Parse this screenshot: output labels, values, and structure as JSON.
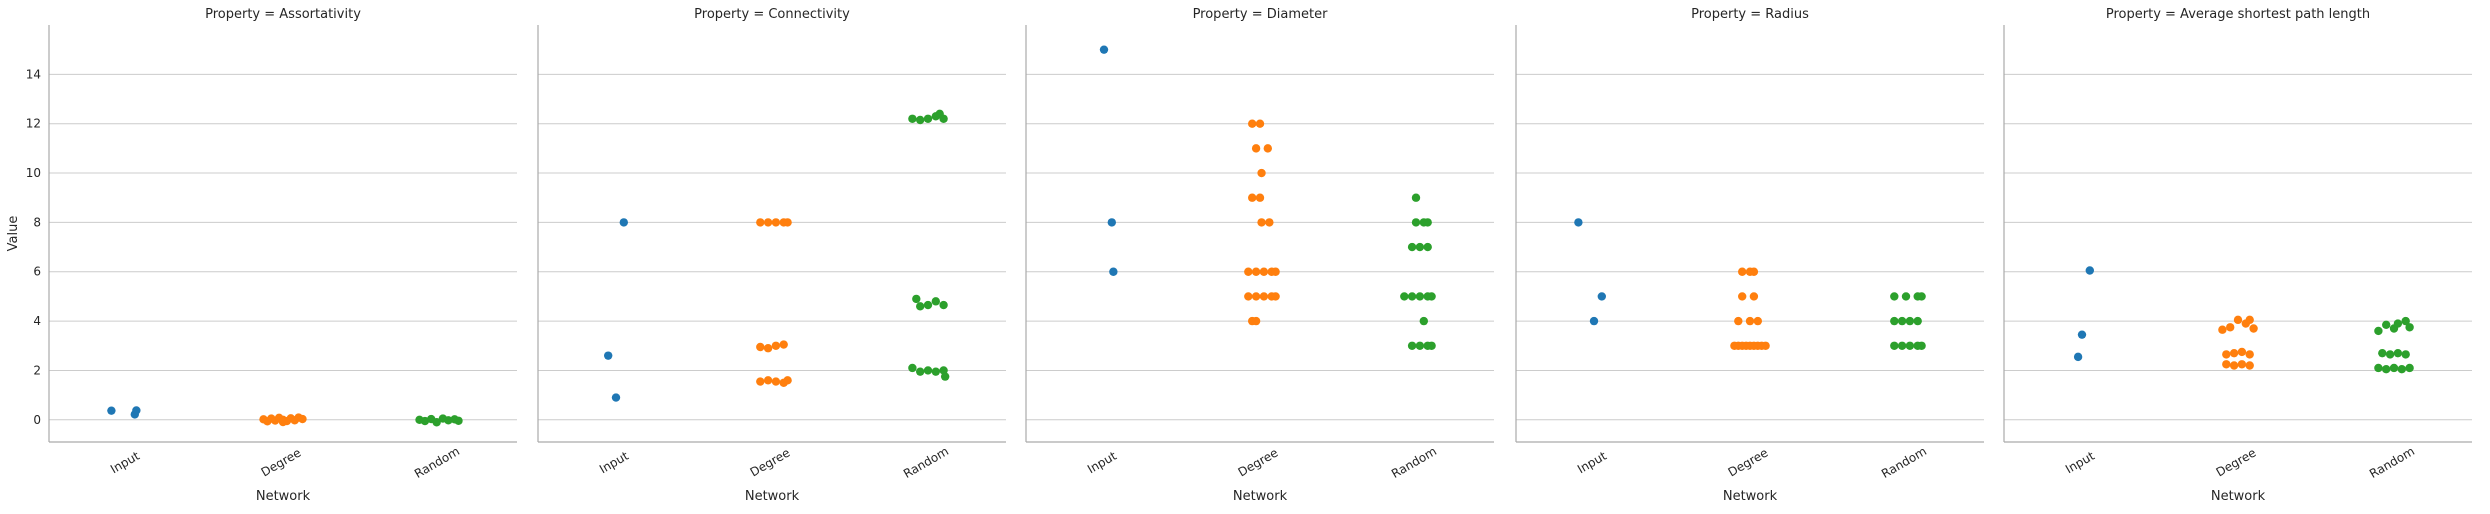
{
  "chart_data": {
    "type": "scatter",
    "ylabel": "Value",
    "xlabel": "Network",
    "ylim": [
      -0.9,
      16.0
    ],
    "yticks": [
      0,
      2,
      4,
      6,
      8,
      10,
      12,
      14
    ],
    "categories": [
      "Input",
      "Degree",
      "Random"
    ],
    "series_colors": {
      "Input": "#1f77b4",
      "Degree": "#ff7f0e",
      "Random": "#2ca02c"
    },
    "grid": true,
    "panels": [
      {
        "title": "Property = Assortativity",
        "points": {
          "Input": [
            [
              -0.2,
              0.37
            ],
            [
              0.1,
              0.22
            ],
            [
              0.12,
              0.38
            ]
          ],
          "Degree": [
            [
              -0.25,
              0.02
            ],
            [
              -0.2,
              -0.06
            ],
            [
              -0.15,
              0.05
            ],
            [
              -0.1,
              -0.03
            ],
            [
              -0.05,
              0.08
            ],
            [
              0.0,
              0.0
            ],
            [
              0.05,
              -0.05
            ],
            [
              0.1,
              0.06
            ],
            [
              0.15,
              -0.02
            ],
            [
              0.2,
              0.09
            ],
            [
              0.25,
              0.03
            ],
            [
              0.0,
              -0.09
            ]
          ],
          "Random": [
            [
              -0.25,
              0.0
            ],
            [
              -0.18,
              -0.05
            ],
            [
              -0.1,
              0.03
            ],
            [
              -0.03,
              -0.1
            ],
            [
              0.05,
              0.05
            ],
            [
              0.12,
              -0.02
            ],
            [
              0.2,
              0.02
            ],
            [
              0.25,
              -0.04
            ]
          ]
        }
      },
      {
        "title": "Property = Connectivity",
        "points": {
          "Input": [
            [
              -0.1,
              2.6
            ],
            [
              0.0,
              0.9
            ],
            [
              0.1,
              8.0
            ]
          ],
          "Degree": [
            [
              -0.15,
              8.0
            ],
            [
              -0.05,
              8.0
            ],
            [
              0.05,
              8.0
            ],
            [
              0.15,
              8.0
            ],
            [
              0.2,
              8.0
            ],
            [
              -0.15,
              2.95
            ],
            [
              -0.05,
              2.9
            ],
            [
              0.05,
              3.0
            ],
            [
              0.15,
              3.05
            ],
            [
              -0.15,
              1.55
            ],
            [
              -0.05,
              1.6
            ],
            [
              0.05,
              1.55
            ],
            [
              0.15,
              1.5
            ],
            [
              0.2,
              1.6
            ]
          ],
          "Random": [
            [
              -0.2,
              12.2
            ],
            [
              -0.1,
              12.15
            ],
            [
              0.0,
              12.2
            ],
            [
              0.1,
              12.3
            ],
            [
              0.15,
              12.4
            ],
            [
              0.2,
              12.2
            ],
            [
              -0.15,
              4.9
            ],
            [
              -0.1,
              4.6
            ],
            [
              0.0,
              4.65
            ],
            [
              0.1,
              4.8
            ],
            [
              0.2,
              4.65
            ],
            [
              -0.2,
              2.1
            ],
            [
              -0.1,
              1.95
            ],
            [
              0.0,
              2.0
            ],
            [
              0.1,
              1.95
            ],
            [
              0.2,
              2.0
            ],
            [
              0.22,
              1.75
            ]
          ]
        }
      },
      {
        "title": "Property = Diameter",
        "points": {
          "Input": [
            [
              0.0,
              15.0
            ],
            [
              0.1,
              8.0
            ],
            [
              0.12,
              6.0
            ]
          ],
          "Degree": [
            [
              -0.1,
              12.0
            ],
            [
              0.0,
              12.0
            ],
            [
              -0.05,
              11.0
            ],
            [
              0.1,
              11.0
            ],
            [
              0.02,
              10.0
            ],
            [
              -0.1,
              9.0
            ],
            [
              0.0,
              9.0
            ],
            [
              0.02,
              8.0
            ],
            [
              0.12,
              8.0
            ],
            [
              -0.15,
              6.0
            ],
            [
              -0.05,
              6.0
            ],
            [
              0.05,
              6.0
            ],
            [
              0.15,
              6.0
            ],
            [
              0.2,
              6.0
            ],
            [
              -0.15,
              5.0
            ],
            [
              -0.05,
              5.0
            ],
            [
              0.05,
              5.0
            ],
            [
              0.15,
              5.0
            ],
            [
              0.2,
              5.0
            ],
            [
              -0.1,
              4.0
            ],
            [
              -0.05,
              4.0
            ]
          ],
          "Random": [
            [
              0.0,
              9.0
            ],
            [
              0.0,
              8.0
            ],
            [
              0.1,
              8.0
            ],
            [
              0.15,
              8.0
            ],
            [
              -0.05,
              7.0
            ],
            [
              0.05,
              7.0
            ],
            [
              0.15,
              7.0
            ],
            [
              -0.15,
              5.0
            ],
            [
              -0.05,
              5.0
            ],
            [
              0.05,
              5.0
            ],
            [
              0.15,
              5.0
            ],
            [
              0.2,
              5.0
            ],
            [
              0.1,
              4.0
            ],
            [
              -0.05,
              3.0
            ],
            [
              0.05,
              3.0
            ],
            [
              0.15,
              3.0
            ],
            [
              0.2,
              3.0
            ]
          ]
        }
      },
      {
        "title": "Property = Radius",
        "points": {
          "Input": [
            [
              -0.2,
              8.0
            ],
            [
              0.1,
              5.0
            ],
            [
              0.0,
              4.0
            ]
          ],
          "Degree": [
            [
              -0.1,
              6.0
            ],
            [
              0.0,
              6.0
            ],
            [
              0.05,
              6.0
            ],
            [
              -0.1,
              5.0
            ],
            [
              0.05,
              5.0
            ],
            [
              -0.15,
              4.0
            ],
            [
              0.0,
              4.0
            ],
            [
              0.1,
              4.0
            ],
            [
              -0.2,
              3.0
            ],
            [
              -0.15,
              3.0
            ],
            [
              -0.1,
              3.0
            ],
            [
              -0.05,
              3.0
            ],
            [
              0.0,
              3.0
            ],
            [
              0.05,
              3.0
            ],
            [
              0.1,
              3.0
            ],
            [
              0.15,
              3.0
            ],
            [
              0.2,
              3.0
            ]
          ],
          "Random": [
            [
              -0.15,
              5.0
            ],
            [
              0.0,
              5.0
            ],
            [
              0.15,
              5.0
            ],
            [
              0.2,
              5.0
            ],
            [
              -0.15,
              4.0
            ],
            [
              -0.05,
              4.0
            ],
            [
              0.05,
              4.0
            ],
            [
              0.15,
              4.0
            ],
            [
              -0.15,
              3.0
            ],
            [
              -0.05,
              3.0
            ],
            [
              0.05,
              3.0
            ],
            [
              0.15,
              3.0
            ],
            [
              0.2,
              3.0
            ]
          ]
        }
      },
      {
        "title": "Property = Average shortest path length",
        "points": {
          "Input": [
            [
              0.1,
              6.05
            ],
            [
              0.0,
              3.45
            ],
            [
              -0.05,
              2.55
            ]
          ],
          "Degree": [
            [
              -0.2,
              3.65
            ],
            [
              -0.1,
              3.75
            ],
            [
              0.0,
              4.05
            ],
            [
              0.1,
              3.9
            ],
            [
              0.15,
              4.05
            ],
            [
              0.2,
              3.7
            ],
            [
              -0.15,
              2.65
            ],
            [
              -0.05,
              2.7
            ],
            [
              0.05,
              2.75
            ],
            [
              0.15,
              2.65
            ],
            [
              -0.15,
              2.25
            ],
            [
              -0.05,
              2.2
            ],
            [
              0.05,
              2.25
            ],
            [
              0.15,
              2.2
            ]
          ],
          "Random": [
            [
              -0.2,
              3.6
            ],
            [
              -0.1,
              3.85
            ],
            [
              0.0,
              3.7
            ],
            [
              0.05,
              3.9
            ],
            [
              0.15,
              4.0
            ],
            [
              0.2,
              3.75
            ],
            [
              -0.15,
              2.7
            ],
            [
              -0.05,
              2.65
            ],
            [
              0.05,
              2.7
            ],
            [
              0.15,
              2.65
            ],
            [
              -0.2,
              2.1
            ],
            [
              -0.1,
              2.05
            ],
            [
              0.0,
              2.1
            ],
            [
              0.1,
              2.05
            ],
            [
              0.2,
              2.1
            ]
          ]
        }
      }
    ]
  }
}
